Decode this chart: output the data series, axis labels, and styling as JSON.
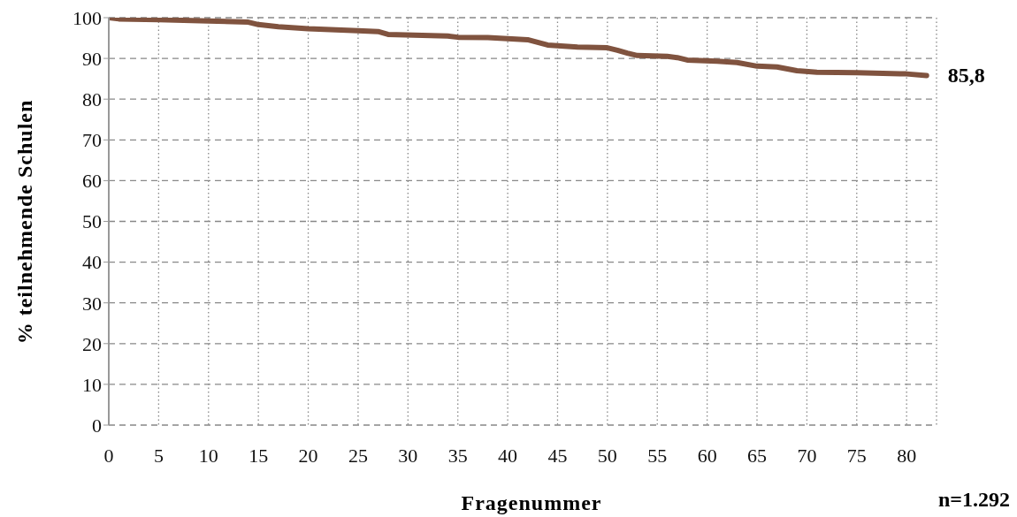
{
  "chart_data": {
    "type": "line",
    "xlabel": "Fragenummer",
    "ylabel": "% teilnehmende Schulen",
    "annotations": [
      {
        "text": "85,8",
        "x": 82,
        "y": 85.8
      },
      "n=1.292"
    ],
    "x": [
      0,
      1,
      5,
      10,
      14,
      15,
      17,
      20,
      25,
      27,
      28,
      34,
      35,
      38,
      42,
      44,
      47,
      50,
      51,
      52,
      53,
      56,
      57,
      58,
      61,
      63,
      65,
      67,
      69,
      71,
      75,
      80,
      82
    ],
    "series": [
      {
        "color": "#80533f",
        "values": [
          100,
          99.7,
          99.5,
          99.2,
          98.9,
          98.3,
          97.8,
          97.3,
          96.8,
          96.6,
          95.9,
          95.5,
          95.2,
          95.1,
          94.6,
          93.3,
          92.8,
          92.6,
          92.0,
          91.3,
          90.7,
          90.5,
          90.2,
          89.6,
          89.3,
          89.0,
          88.1,
          87.9,
          87.0,
          86.6,
          86.5,
          86.2,
          85.8
        ]
      }
    ],
    "xlim": [
      0,
      83
    ],
    "xticks": [
      0,
      5,
      10,
      15,
      20,
      25,
      30,
      35,
      40,
      45,
      50,
      55,
      60,
      65,
      70,
      75,
      80
    ],
    "ylim": [
      0,
      100
    ],
    "yticks": [
      0,
      10,
      20,
      30,
      40,
      50,
      60,
      70,
      80,
      90,
      100
    ],
    "grid": true,
    "legend": false,
    "marker": "none",
    "line_style": "solid"
  }
}
